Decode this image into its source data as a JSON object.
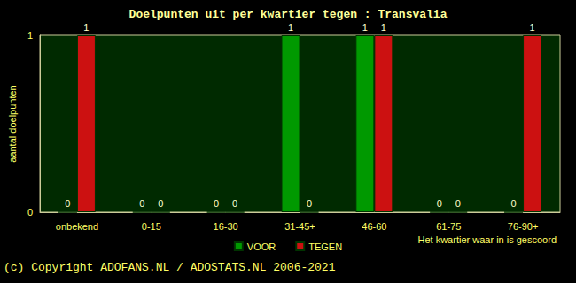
{
  "chart_data": {
    "type": "bar",
    "title": "Doelpunten uit per kwartier tegen : Transvalia",
    "ylabel": "aantal doelpunten",
    "xlabel": "Het kwartier waar in is gescoord",
    "annotations": [
      "(c) Copyright ADOFANS.NL / ADOSTATS.NL 2006-2021"
    ],
    "categories": [
      "onbekend",
      "0-15",
      "16-30",
      "31-45+",
      "46-60",
      "61-75",
      "76-90+"
    ],
    "series": [
      {
        "name": "VOOR",
        "color": "#009900",
        "values": [
          0,
          0,
          0,
          1,
          1,
          0,
          0
        ]
      },
      {
        "name": "TEGEN",
        "color": "#cc1111",
        "values": [
          1,
          0,
          0,
          0,
          1,
          0,
          1
        ]
      }
    ],
    "ylim": [
      0,
      1
    ],
    "yticks": [
      0,
      1
    ],
    "grid": false,
    "legend": "bottom",
    "data_labels": true
  }
}
